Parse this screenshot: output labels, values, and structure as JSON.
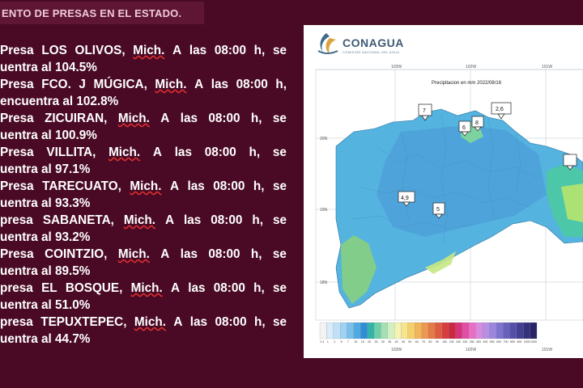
{
  "header": {
    "title": "ENTO DE PRESAS EN EL ESTADO."
  },
  "dams": [
    {
      "l1": [
        "Presa",
        "LOS",
        "OLIVOS,",
        "Mich.",
        "A",
        "las",
        "08:00",
        "h,",
        "se"
      ],
      "l2": "uentra al 104.5%"
    },
    {
      "l1": [
        "Presa",
        "FCO.",
        "J",
        "MÚGICA,",
        "Mich.",
        "A",
        "las",
        "08:00",
        "h,"
      ],
      "l2": "encuentra al 102.8%"
    },
    {
      "l1": [
        "Presa",
        "ZICUIRAN,",
        "Mich.",
        "A",
        "las",
        "08:00",
        "h,",
        "se"
      ],
      "l2": "uentra al 100.9%"
    },
    {
      "l1": [
        "Presa",
        "VILLITA,",
        "Mich.",
        "A",
        "las",
        "08:00",
        "h,",
        "se"
      ],
      "l2": "uentra al 97.1%"
    },
    {
      "l1": [
        "Presa",
        "TARECUATO,",
        "Mich.",
        "A",
        "las",
        "08:00",
        "h,",
        "se"
      ],
      "l2": "uentra al 93.3%"
    },
    {
      "l1": [
        "presa",
        "SABANETA,",
        "Mich.",
        "A",
        "las",
        "08:00",
        "h,",
        "se"
      ],
      "l2": "uentra al 93.2%"
    },
    {
      "l1": [
        "Presa",
        "COINTZIO,",
        "Mich.",
        "A",
        "las",
        "08:00",
        "h,",
        "se"
      ],
      "l2": "uentra al 89.5%"
    },
    {
      "l1": [
        "presa",
        "EL",
        "BOSQUE,",
        "Mich.",
        "A",
        "las",
        "08:00",
        "h,",
        "se"
      ],
      "l2": "uentra al 51.0%"
    },
    {
      "l1": [
        "presa",
        "TEPUXTEPEC,",
        "Mich.",
        "A",
        "las",
        "08:00",
        "h,",
        "se"
      ],
      "l2": "uentra al 44.7%"
    }
  ],
  "map": {
    "logo_text": "CONAGUA",
    "logo_subtitle": "COMISIÓN NACIONAL DEL AGUA",
    "title": "Precipitacion en mm  2022/08/16",
    "lon_labels": [
      "103W",
      "102W",
      "101W"
    ],
    "lat_labels": [
      "20N",
      "19N",
      "18N"
    ],
    "markers": [
      {
        "label": "7"
      },
      {
        "label": "2,6"
      },
      {
        "label": "6"
      },
      {
        "label": "8"
      },
      {
        "label": "4,9"
      },
      {
        "label": "5"
      },
      {
        "label": ""
      }
    ],
    "legend_labels": [
      "0.1",
      "1",
      "2",
      "5",
      "7",
      "10",
      "15",
      "20",
      "25",
      "30",
      "35",
      "40",
      "45",
      "50",
      "60",
      "70",
      "80",
      "90",
      "100",
      "125",
      "150",
      "200",
      "250",
      "300",
      "400",
      "500",
      "600",
      "700",
      "800",
      "900",
      "1000",
      "1200"
    ],
    "legend_colors": [
      "#f3f3f3",
      "#d8ecfb",
      "#bfe0f7",
      "#9ed1f2",
      "#78c0ec",
      "#4fa9e3",
      "#2f8fd6",
      "#35b2a8",
      "#6ccfa7",
      "#a4e0b5",
      "#d4efc2",
      "#f4f3b4",
      "#f7e58e",
      "#f6cf6b",
      "#f1b55a",
      "#ec9850",
      "#e57a48",
      "#de5b42",
      "#d63d3f",
      "#c9283f",
      "#d6337a",
      "#e04fa3",
      "#e86fc4",
      "#d98be0",
      "#b88fe4",
      "#9a86de",
      "#7e73cf",
      "#6760bd",
      "#5450a8",
      "#433f92",
      "#34307c",
      "#28246a"
    ]
  }
}
